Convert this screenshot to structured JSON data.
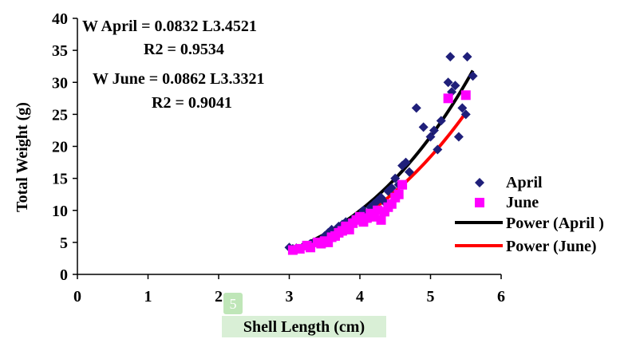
{
  "chart_data": {
    "type": "scatter",
    "title": "",
    "xlabel": "Shell Length (cm)",
    "ylabel": "Total Weight (g)",
    "xlim": [
      0,
      6
    ],
    "ylim": [
      0,
      40
    ],
    "xticks": [
      0,
      1,
      2,
      3,
      4,
      5,
      6
    ],
    "yticks": [
      0,
      5,
      10,
      15,
      20,
      25,
      30,
      35,
      40
    ],
    "xtick_labels": [
      "0",
      "1",
      "2",
      "3",
      "4",
      "5",
      "6"
    ],
    "ytick_labels": [
      "0",
      "5",
      "10",
      "15",
      "20",
      "25",
      "30",
      "35",
      "40"
    ],
    "grid": false,
    "legend_position": "right",
    "annotations": [
      {
        "line1": "W April = 0.0832 L3.4521",
        "line2": "R2 = 0.9534"
      },
      {
        "line1": "W June = 0.0862 L3.3321",
        "line2": "R2 = 0.9041"
      }
    ],
    "series": [
      {
        "name": "April",
        "marker": "diamond",
        "color": "#1f1f7a",
        "points": [
          [
            3.0,
            4.2
          ],
          [
            3.05,
            4.0
          ],
          [
            3.1,
            4.1
          ],
          [
            3.2,
            4.4
          ],
          [
            3.3,
            4.8
          ],
          [
            3.35,
            5.0
          ],
          [
            3.45,
            5.3
          ],
          [
            3.5,
            6.0
          ],
          [
            3.55,
            6.5
          ],
          [
            3.6,
            7.0
          ],
          [
            3.65,
            6.2
          ],
          [
            3.7,
            7.5
          ],
          [
            3.75,
            7.8
          ],
          [
            3.8,
            8.2
          ],
          [
            3.85,
            7.0
          ],
          [
            3.9,
            8.5
          ],
          [
            3.95,
            9.0
          ],
          [
            4.0,
            9.2
          ],
          [
            4.05,
            10.0
          ],
          [
            4.1,
            9.5
          ],
          [
            4.15,
            10.5
          ],
          [
            4.2,
            11.0
          ],
          [
            4.25,
            11.5
          ],
          [
            4.3,
            12.0
          ],
          [
            4.35,
            11.3
          ],
          [
            4.4,
            13.0
          ],
          [
            4.45,
            13.5
          ],
          [
            4.5,
            15.0
          ],
          [
            4.55,
            14.0
          ],
          [
            4.6,
            17.0
          ],
          [
            4.65,
            17.5
          ],
          [
            4.7,
            16.0
          ],
          [
            4.8,
            26.0
          ],
          [
            4.9,
            23.0
          ],
          [
            5.0,
            21.5
          ],
          [
            5.05,
            22.5
          ],
          [
            5.1,
            19.5
          ],
          [
            5.15,
            24.0
          ],
          [
            5.25,
            30.0
          ],
          [
            5.28,
            34.0
          ],
          [
            5.3,
            28.5
          ],
          [
            5.35,
            29.5
          ],
          [
            5.4,
            21.5
          ],
          [
            5.45,
            26.0
          ],
          [
            5.5,
            25.0
          ],
          [
            5.52,
            34.0
          ],
          [
            5.6,
            31.0
          ]
        ]
      },
      {
        "name": "June",
        "marker": "square",
        "color": "#ff00ff",
        "points": [
          [
            3.05,
            3.8
          ],
          [
            3.15,
            4.0
          ],
          [
            3.25,
            4.5
          ],
          [
            3.3,
            4.2
          ],
          [
            3.4,
            5.0
          ],
          [
            3.45,
            4.8
          ],
          [
            3.5,
            5.2
          ],
          [
            3.55,
            5.0
          ],
          [
            3.6,
            5.8
          ],
          [
            3.65,
            6.0
          ],
          [
            3.7,
            6.5
          ],
          [
            3.75,
            6.8
          ],
          [
            3.8,
            7.5
          ],
          [
            3.85,
            7.0
          ],
          [
            3.9,
            8.0
          ],
          [
            3.95,
            8.5
          ],
          [
            4.0,
            9.0
          ],
          [
            4.05,
            8.2
          ],
          [
            4.1,
            8.8
          ],
          [
            4.15,
            9.5
          ],
          [
            4.2,
            9.0
          ],
          [
            4.25,
            10.0
          ],
          [
            4.3,
            8.5
          ],
          [
            4.35,
            9.8
          ],
          [
            4.4,
            10.5
          ],
          [
            4.45,
            11.0
          ],
          [
            4.5,
            12.0
          ],
          [
            4.55,
            12.5
          ],
          [
            4.6,
            14.0
          ],
          [
            5.25,
            27.5
          ],
          [
            5.5,
            28.0
          ]
        ]
      },
      {
        "name": "Power (April )",
        "type": "line",
        "color": "#000000",
        "a": 0.0832,
        "b": 3.4521,
        "x_range": [
          3.0,
          5.6
        ]
      },
      {
        "name": "Power (June)",
        "type": "line",
        "color": "#ff0000",
        "a": 0.0862,
        "b": 3.3321,
        "x_range": [
          3.0,
          5.5
        ]
      }
    ]
  },
  "overlay": {
    "badge_text": "5"
  }
}
